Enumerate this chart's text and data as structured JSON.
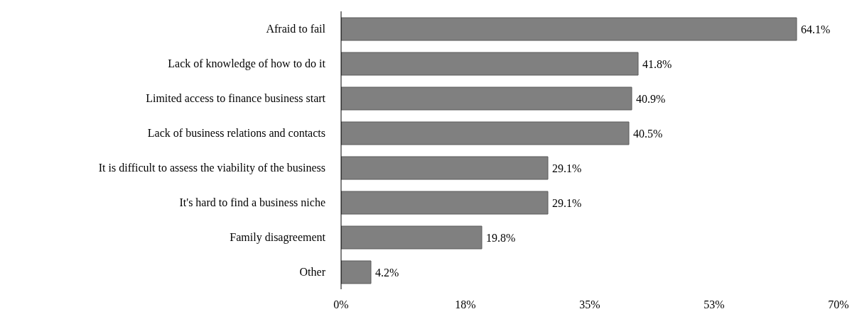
{
  "chart_data": {
    "type": "bar",
    "orientation": "horizontal",
    "categories": [
      "Afraid to fail",
      "Lack of knowledge of how to do it",
      "Limited access to finance business start",
      "Lack of business relations and contacts",
      "It is difficult to assess the viability of the business",
      "It's hard to find a business niche",
      "Family disagreement",
      "Other"
    ],
    "values": [
      64.1,
      41.8,
      40.9,
      40.5,
      29.1,
      29.1,
      19.8,
      4.2
    ],
    "value_labels": [
      "64.1%",
      "41.8%",
      "40.9%",
      "40.5%",
      "29.1%",
      "29.1%",
      "19.8%",
      "4.2%"
    ],
    "color": "#808080",
    "xlim": [
      0,
      70
    ],
    "xticks": [
      {
        "value": 0,
        "label": "0%"
      },
      {
        "value": 17.5,
        "label": "18%"
      },
      {
        "value": 35,
        "label": "35%"
      },
      {
        "value": 52.5,
        "label": "53%"
      },
      {
        "value": 70,
        "label": "70%"
      }
    ],
    "grid": false
  }
}
